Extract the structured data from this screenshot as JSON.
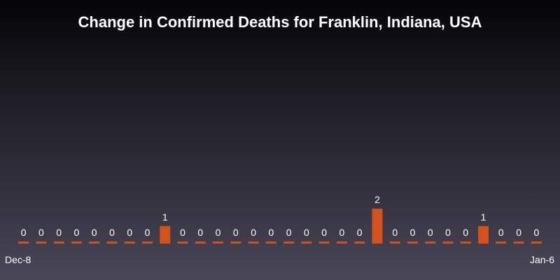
{
  "chart_data": {
    "type": "bar",
    "title": "Change in Confirmed Deaths for Franklin, Indiana, USA",
    "xlabel": "",
    "ylabel": "",
    "x_tick_labels": [
      "Dec-8",
      "Jan-6"
    ],
    "values": [
      0,
      0,
      0,
      0,
      0,
      0,
      0,
      0,
      1,
      0,
      0,
      0,
      0,
      0,
      0,
      0,
      0,
      0,
      0,
      0,
      2,
      0,
      0,
      0,
      0,
      0,
      1,
      0,
      0,
      0
    ],
    "bar_color": "#d4521a",
    "background": "gradient-dark",
    "grid": false,
    "legend": "none"
  }
}
